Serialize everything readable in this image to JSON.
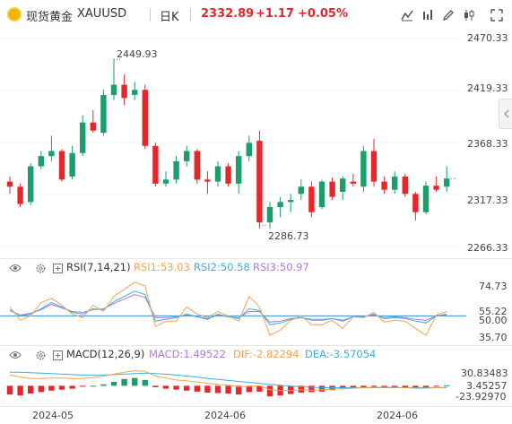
{
  "header": {
    "instrument_name": "现货黄金",
    "symbol": "XAUUSD",
    "period": "日K",
    "price": "2332.89",
    "change": "+1.17",
    "change_pct": "+0.05%"
  },
  "price_axis": [
    "2470.33",
    "2419.33",
    "2368.33",
    "2317.33",
    "2266.33"
  ],
  "annotations": {
    "high": "2449.93",
    "low": "2286.73"
  },
  "rsi": {
    "title": "RSI(7,14,21)",
    "rsi1": "RSI1:53.03",
    "rsi2": "RSI2:50.58",
    "rsi3": "RSI3:50.97",
    "axis": [
      "74.73",
      "55.22",
      "50.00",
      "35.70"
    ]
  },
  "macd": {
    "title": "MACD(12,26,9)",
    "macd": "MACD:1.49522",
    "dif": "DIF:-2.82294",
    "dea": "DEA:-3.57054",
    "axis": [
      "30.83483",
      "3.45257",
      "-23.92970"
    ]
  },
  "x_axis": [
    "2024-05",
    "2024-06",
    "2024-06"
  ],
  "colors": {
    "up": "#1a9e6a",
    "down": "#e8262a",
    "gold_icon": "#f0b400",
    "rsi1": "#f5a24b",
    "rsi2": "#3ab0d9",
    "rsi3": "#b07ad8",
    "dif": "#f5a24b",
    "dea": "#3ab0d9",
    "ref_line": "#2f8fd0"
  },
  "chart_data": {
    "type": "candlestick",
    "ylim": [
      2266.33,
      2470.33
    ],
    "candles": [
      [
        2330,
        2335,
        2318,
        2325
      ],
      [
        2325,
        2328,
        2305,
        2308
      ],
      [
        2310,
        2348,
        2307,
        2345
      ],
      [
        2345,
        2360,
        2342,
        2355
      ],
      [
        2355,
        2375,
        2350,
        2360
      ],
      [
        2360,
        2362,
        2330,
        2332
      ],
      [
        2335,
        2365,
        2332,
        2358
      ],
      [
        2358,
        2395,
        2355,
        2388
      ],
      [
        2388,
        2400,
        2378,
        2380
      ],
      [
        2378,
        2420,
        2375,
        2415
      ],
      [
        2415,
        2450,
        2410,
        2425
      ],
      [
        2425,
        2435,
        2405,
        2412
      ],
      [
        2415,
        2428,
        2410,
        2420
      ],
      [
        2420,
        2425,
        2362,
        2365
      ],
      [
        2365,
        2368,
        2325,
        2328
      ],
      [
        2328,
        2340,
        2325,
        2332
      ],
      [
        2332,
        2355,
        2328,
        2350
      ],
      [
        2350,
        2365,
        2345,
        2360
      ],
      [
        2360,
        2362,
        2328,
        2332
      ],
      [
        2332,
        2340,
        2318,
        2330
      ],
      [
        2330,
        2350,
        2325,
        2345
      ],
      [
        2345,
        2348,
        2325,
        2328
      ],
      [
        2328,
        2360,
        2318,
        2355
      ],
      [
        2355,
        2375,
        2350,
        2368
      ],
      [
        2370,
        2380,
        2284,
        2290
      ],
      [
        2290,
        2310,
        2284,
        2305
      ],
      [
        2305,
        2315,
        2295,
        2310
      ],
      [
        2310,
        2318,
        2300,
        2312
      ],
      [
        2318,
        2332,
        2312,
        2325
      ],
      [
        2325,
        2330,
        2295,
        2300
      ],
      [
        2305,
        2332,
        2303,
        2330
      ],
      [
        2330,
        2334,
        2312,
        2315
      ],
      [
        2320,
        2335,
        2312,
        2333
      ],
      [
        2330,
        2338,
        2325,
        2328
      ],
      [
        2325,
        2365,
        2320,
        2360
      ],
      [
        2360,
        2372,
        2325,
        2330
      ],
      [
        2330,
        2335,
        2318,
        2322
      ],
      [
        2322,
        2340,
        2318,
        2335
      ],
      [
        2335,
        2338,
        2315,
        2318
      ],
      [
        2318,
        2320,
        2292,
        2300
      ],
      [
        2300,
        2330,
        2298,
        2326
      ],
      [
        2326,
        2335,
        2320,
        2322
      ],
      [
        2325,
        2345,
        2320,
        2333
      ]
    ],
    "rsi_ylim": [
      20,
      95
    ],
    "rsi1": [
      60,
      45,
      50,
      65,
      70,
      62,
      52,
      48,
      62,
      55,
      72,
      80,
      88,
      84,
      38,
      44,
      44,
      60,
      52,
      48,
      55,
      50,
      44,
      72,
      60,
      28,
      34,
      45,
      50,
      40,
      40,
      45,
      36,
      49,
      48,
      54,
      43,
      45,
      44,
      36,
      28,
      51,
      55
    ],
    "rsi2": [
      57,
      50,
      52,
      58,
      65,
      60,
      54,
      52,
      58,
      57,
      66,
      72,
      78,
      74,
      44,
      46,
      48,
      52,
      49,
      46,
      52,
      49,
      47,
      58,
      56,
      40,
      42,
      46,
      48,
      45,
      45,
      47,
      44,
      49,
      49,
      52,
      47,
      48,
      47,
      44,
      42,
      50,
      52
    ],
    "rsi3": [
      56,
      51,
      53,
      57,
      63,
      59,
      55,
      54,
      57,
      58,
      64,
      69,
      74,
      71,
      48,
      48,
      49,
      51,
      49,
      47,
      51,
      49,
      48,
      55,
      55,
      43,
      44,
      47,
      48,
      46,
      46,
      47,
      45,
      49,
      49,
      51,
      48,
      49,
      48,
      46,
      45,
      50,
      51
    ],
    "macd_ylim": [
      -40,
      45
    ],
    "macd_hist": [
      -18,
      -20,
      -16,
      -13,
      -10,
      -8,
      -6,
      -2,
      0,
      3,
      8,
      14,
      16,
      12,
      -3,
      -6,
      -8,
      -10,
      -12,
      -14,
      -15,
      -16,
      -18,
      -13,
      -12,
      -22,
      -20,
      -17,
      -14,
      -13,
      -12,
      -9,
      -7,
      -6,
      -5,
      -2,
      -3,
      -3,
      -4,
      -5,
      -4,
      -2,
      1
    ],
    "dif": [
      22,
      18,
      15,
      15,
      16,
      16,
      15,
      15,
      17,
      20,
      24,
      28,
      31,
      30,
      20,
      16,
      12,
      10,
      8,
      5,
      3,
      1,
      -2,
      -1,
      0,
      -8,
      -10,
      -10,
      -8,
      -9,
      -8,
      -7,
      -6,
      -5,
      -4,
      -3,
      -3,
      -3,
      -4,
      -5,
      -5,
      -4,
      -3
    ],
    "dea": [
      28,
      28,
      27,
      26,
      25,
      24,
      23,
      22,
      22,
      22,
      23,
      24,
      25,
      26,
      25,
      24,
      22,
      20,
      18,
      15,
      13,
      11,
      9,
      7,
      5,
      3,
      1,
      -1,
      -2,
      -3,
      -4,
      -4,
      -4,
      -4,
      -4,
      -4,
      -4,
      -4,
      -4,
      -4,
      -4,
      -4,
      -4
    ]
  }
}
